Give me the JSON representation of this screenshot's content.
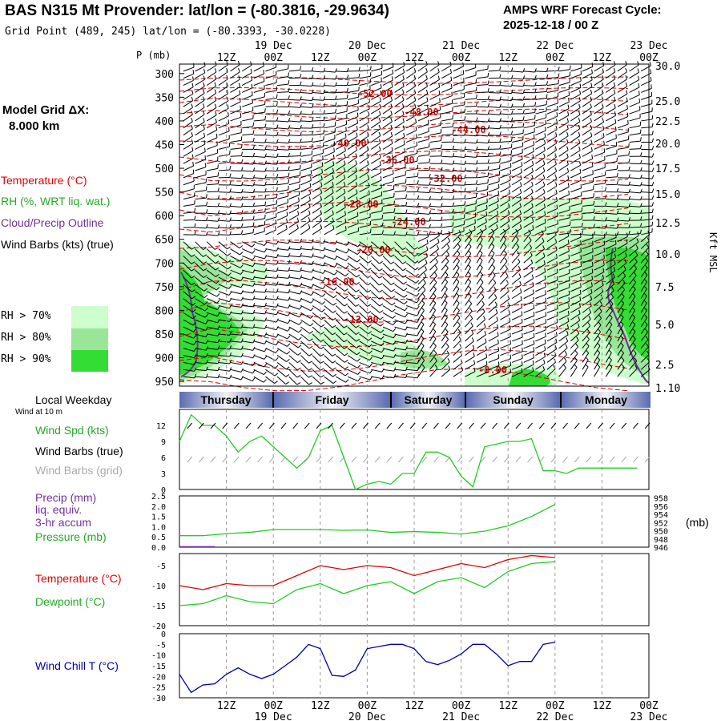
{
  "header": {
    "title": "BAS N315 Mt Provender:  lat/lon = (-80.3816, -29.9634)",
    "grid_point": "Grid Point (489, 245) lat/lon = (-80.3393, -30.0228)",
    "cycle_line1": "AMPS WRF Forecast Cycle:",
    "cycle_line2": "2025-12-18 / 00  Z"
  },
  "sidebar": {
    "model_grid_line1": "Model Grid ΔX:",
    "model_grid_line2": "8.000 km",
    "legend_temperature": "Temperature (°C)",
    "legend_rh": "RH (%, WRT liq. wat.)",
    "legend_cloud": "Cloud/Precip Outline",
    "legend_wind": "Wind Barbs (kts) (true)",
    "rh70": "RH > 70%",
    "rh80": "RH > 80%",
    "rh90": "RH > 90%",
    "local_weekday": "Local Weekday",
    "wind_at_10m": "Wind at 10 m",
    "wind_spd": "Wind Spd (kts)",
    "wind_barbs_true": "Wind Barbs (true)",
    "wind_barbs_grid": "Wind Barbs (grid)",
    "precip": "Precip (mm)",
    "liq_equiv": "liq. equiv.",
    "accum": "3-hr accum",
    "pressure": "Pressure (mb)",
    "temperature": "Temperature (°C)",
    "dewpoint": "Dewpoint (°C)",
    "wind_chill": "Wind Chill T (°C)",
    "pressure_unit": "(mb)"
  },
  "colors": {
    "temp": "#e00000",
    "rh70": "#ccffcc",
    "rh80": "#99e699",
    "rh90": "#33dd33",
    "cloud": "#7030a0",
    "dewpoint": "#22cc22",
    "windchill": "#0000aa",
    "wind_grid": "#aaaaaa",
    "bar": "#5a6cb0"
  },
  "weekdays": [
    "Thursday",
    "Friday",
    "Saturday",
    "Sunday",
    "Monday"
  ],
  "chart_data": [
    {
      "type": "contour",
      "name": "vertical-cross-section",
      "ylabel": "P (mb)",
      "y2label": "Kft MSL",
      "p_ticks": [
        300,
        350,
        400,
        450,
        500,
        550,
        600,
        650,
        700,
        750,
        800,
        850,
        900,
        950
      ],
      "kft_ticks": [
        "30.0",
        "25.0",
        "22.5",
        "20.0",
        "17.5",
        "15.0",
        "12.5",
        "10.0",
        "7.5",
        "5.0",
        "2.5",
        "1.10"
      ],
      "x_top_labels": [
        "12Z",
        "00Z",
        "12Z",
        "00Z",
        "12Z",
        "00Z",
        "12Z",
        "00Z",
        "12Z",
        "00Z"
      ],
      "date_labels": [
        "19 Dec",
        "20 Dec",
        "21 Dec",
        "22 Dec",
        "23 Dec"
      ],
      "temp_labels": [
        "-52.00",
        "-48.00",
        "-44.00",
        "-40.00",
        "-36.00",
        "-32.00",
        "-28.00",
        "-24.00",
        "-20.00",
        "-16.00",
        "-12.00",
        "-8.00"
      ]
    },
    {
      "type": "line",
      "name": "wind-speed",
      "yticks": [
        0,
        3,
        6,
        9,
        12
      ],
      "ylim": [
        0,
        15
      ],
      "x_hours": [
        0,
        3,
        6,
        9,
        12,
        15,
        18,
        21,
        24,
        27,
        30,
        33,
        36,
        39,
        42,
        45,
        48,
        51,
        54,
        57,
        60,
        63,
        66,
        69,
        72,
        75,
        78,
        81,
        84,
        87,
        90,
        93,
        96,
        99,
        102,
        105,
        108,
        111,
        114,
        117
      ],
      "values": [
        9,
        14,
        12,
        12,
        10,
        7,
        9,
        10,
        8,
        6,
        4,
        6,
        11,
        12,
        6,
        0,
        1,
        1.5,
        1,
        3,
        3,
        7,
        7,
        6,
        2.5,
        0.5,
        8,
        8.5,
        9,
        9,
        9.5,
        3.5,
        3.5,
        3,
        4,
        4,
        4,
        4,
        4,
        4
      ]
    },
    {
      "type": "line",
      "name": "precip-pressure",
      "precip_yticks": [
        "0.0",
        "0.5",
        "1.0",
        "1.5",
        "2.0",
        "2.5"
      ],
      "precip_ylim": [
        0,
        2.5
      ],
      "pressure_yticks": [
        946,
        948,
        950,
        952,
        954,
        956,
        958
      ],
      "pressure_ylim": [
        946,
        958.5
      ],
      "precip_values": [
        0.05,
        0.05,
        0.05
      ],
      "pressure_x_hours": [
        0,
        6,
        12,
        18,
        24,
        30,
        36,
        42,
        48,
        54,
        60,
        66,
        72,
        78,
        84,
        90,
        96
      ],
      "pressure_values": [
        948.8,
        948.8,
        949.3,
        949.6,
        950.3,
        950.3,
        950.3,
        950.1,
        950.2,
        949.6,
        949.8,
        949.6,
        949.2,
        949.9,
        951.2,
        953.5,
        956.4
      ]
    },
    {
      "type": "line",
      "name": "temperature-dewpoint",
      "yticks": [
        -20,
        -15,
        -10,
        -5
      ],
      "ylim": [
        -20,
        -2
      ],
      "x_hours": [
        0,
        6,
        12,
        18,
        24,
        30,
        36,
        42,
        48,
        54,
        60,
        66,
        72,
        78,
        84,
        90,
        96
      ],
      "series": [
        {
          "name": "Temperature",
          "values": [
            -10,
            -11,
            -9.5,
            -10,
            -10,
            -7.5,
            -5,
            -6,
            -5,
            -5.5,
            -7.5,
            -6,
            -4.5,
            -5.5,
            -3.5,
            -2.5,
            -3
          ]
        },
        {
          "name": "Dewpoint",
          "values": [
            -15,
            -14.5,
            -12.5,
            -14,
            -14.5,
            -11,
            -9.5,
            -12,
            -10,
            -9,
            -12,
            -9,
            -8,
            -10.5,
            -6.5,
            -4.5,
            -4
          ]
        }
      ]
    },
    {
      "type": "line",
      "name": "wind-chill",
      "yticks": [
        -30,
        -25,
        -20,
        -15,
        -10,
        -5,
        0
      ],
      "ylim": [
        -30,
        0
      ],
      "x_hours": [
        0,
        3,
        6,
        9,
        12,
        15,
        18,
        21,
        24,
        27,
        30,
        33,
        36,
        39,
        42,
        45,
        48,
        51,
        54,
        57,
        60,
        63,
        66,
        69,
        72,
        75,
        78,
        81,
        84,
        87,
        90,
        93,
        96
      ],
      "values": [
        -19,
        -27.5,
        -24,
        -23.5,
        -19,
        -16,
        -19,
        -21,
        -19,
        -15,
        -11,
        -5,
        -7,
        -19.5,
        -20,
        -17,
        -7,
        -6,
        -5,
        -5,
        -7,
        -13,
        -14.5,
        -12.5,
        -9.5,
        -5,
        -5,
        -9.5,
        -15,
        -13,
        -13,
        -5,
        -4
      ]
    },
    {
      "type": "axis",
      "name": "bottom-time-axis",
      "x_labels": [
        "12Z",
        "00Z",
        "12Z",
        "00Z",
        "12Z",
        "00Z",
        "12Z",
        "00Z",
        "12Z",
        "00Z"
      ],
      "date_labels": [
        "19 Dec",
        "20 Dec",
        "21 Dec",
        "22 Dec",
        "23 Dec"
      ]
    }
  ]
}
